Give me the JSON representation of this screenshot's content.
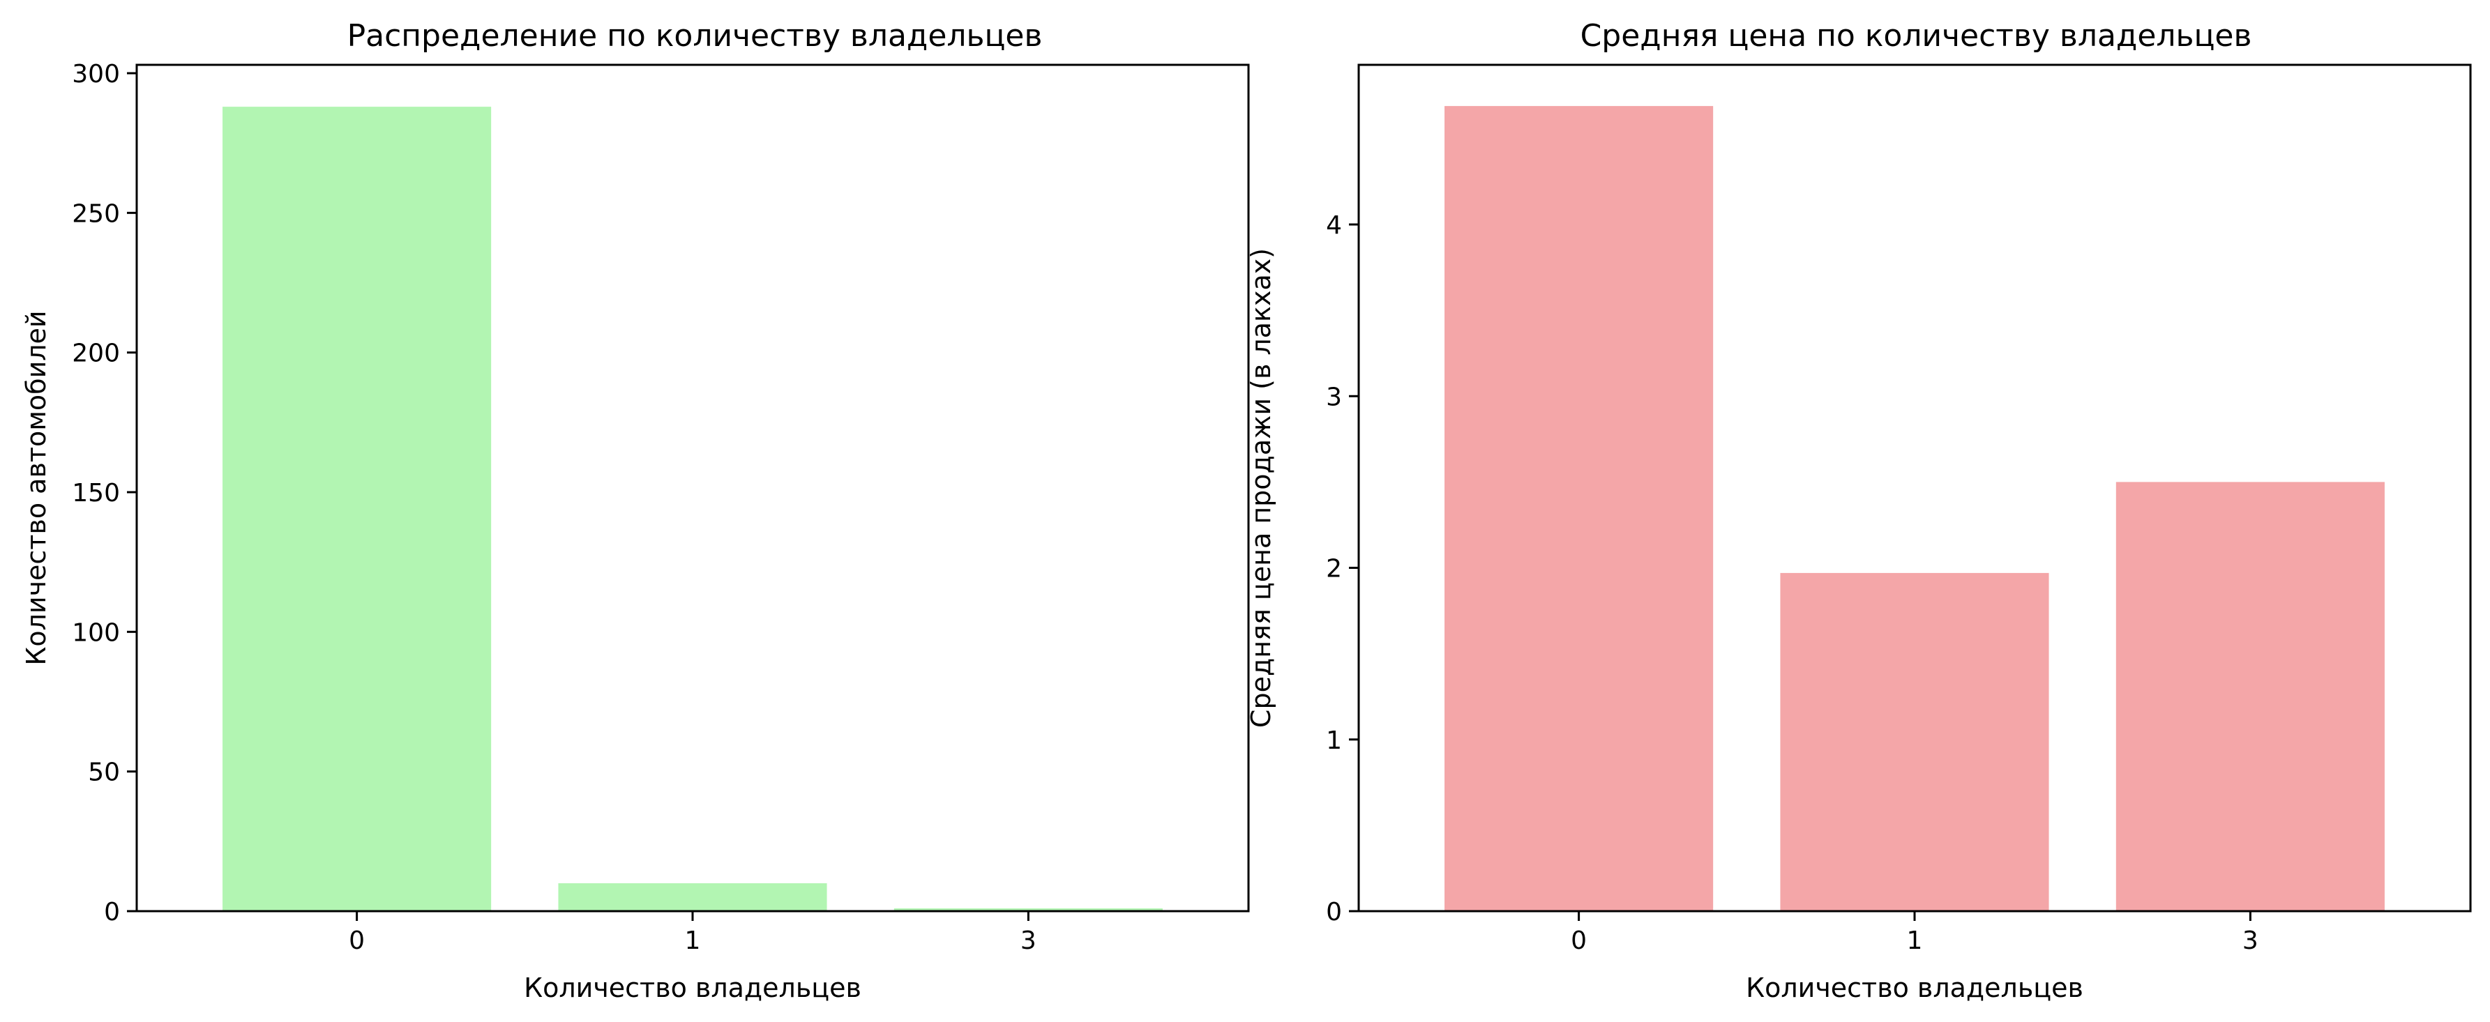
{
  "chart_data": [
    {
      "type": "bar",
      "title": "Распределение по количеству владельцев",
      "xlabel": "Количество владельцев",
      "ylabel": "Количество автомобилей",
      "categories": [
        "0",
        "1",
        "3"
      ],
      "values": [
        288,
        10,
        1
      ],
      "ylim": [
        0,
        303
      ],
      "yticks": [
        0,
        50,
        100,
        150,
        200,
        250,
        300
      ],
      "color": "#b2f5b2",
      "grid": false
    },
    {
      "type": "bar",
      "title": "Средняя цена по количеству владельцев",
      "xlabel": "Количество владельцев",
      "ylabel": "Средняя цена продажи (в лакхах)",
      "categories": [
        "0",
        "1",
        "3"
      ],
      "values": [
        4.69,
        1.97,
        2.5
      ],
      "ylim": [
        0,
        4.93
      ],
      "yticks": [
        0,
        1,
        2,
        3,
        4
      ],
      "color": "#f4a6a8",
      "grid": false
    }
  ]
}
